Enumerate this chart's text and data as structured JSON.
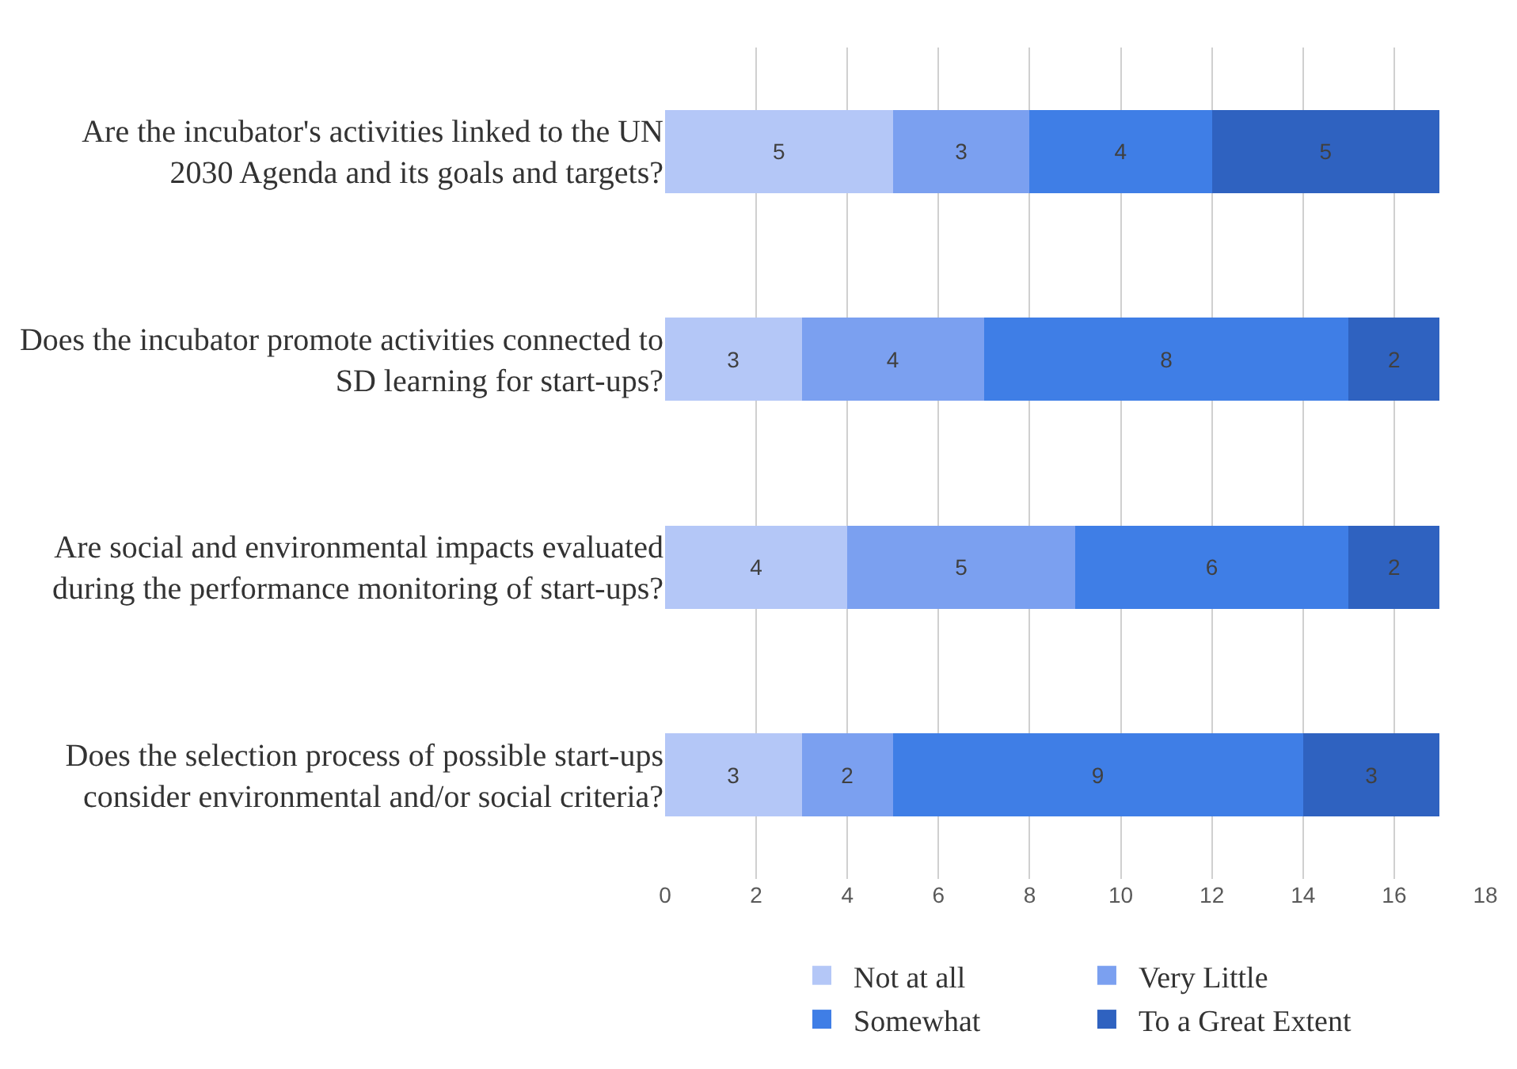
{
  "chart_data": {
    "type": "bar",
    "orientation": "horizontal",
    "stacked": true,
    "data_labels": true,
    "grid": "x",
    "legend": "bottom",
    "categories": [
      "Are the incubator's activities linked to the UN 2030 Agenda and its goals and targets?",
      "Does the incubator promote activities connected to SD learning for start-ups?",
      "Are social and environmental impacts evaluated during the performance monitoring of start-ups?",
      "Does the selection process of possible start-ups consider environmental and/or social criteria?"
    ],
    "series": [
      {
        "name": "Not at all",
        "color": "#b4c7f7",
        "values": [
          5,
          3,
          4,
          3
        ]
      },
      {
        "name": "Very Little",
        "color": "#7ba0f0",
        "values": [
          3,
          4,
          5,
          2
        ]
      },
      {
        "name": "Somewhat",
        "color": "#3f7ee6",
        "values": [
          4,
          8,
          6,
          9
        ]
      },
      {
        "name": "To a Great Extent",
        "color": "#2f62c0",
        "values": [
          5,
          2,
          2,
          3
        ]
      }
    ],
    "xlim": [
      0,
      18
    ],
    "xticks": [
      0,
      2,
      4,
      6,
      8,
      10,
      12,
      14,
      16,
      18
    ]
  }
}
